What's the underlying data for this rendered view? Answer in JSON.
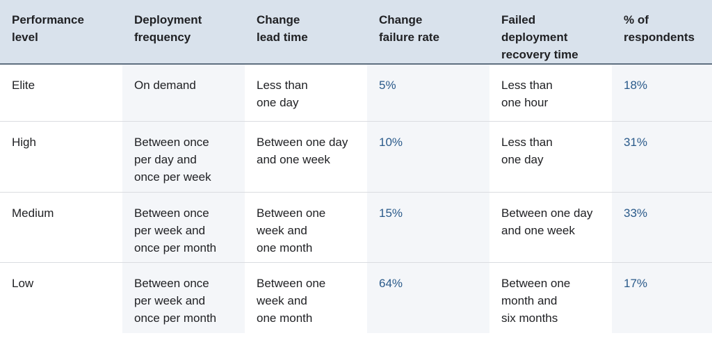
{
  "headers": [
    [
      "Performance",
      "level"
    ],
    [
      "Deployment",
      "frequency"
    ],
    [
      "Change",
      "lead time"
    ],
    [
      "Change",
      "failure rate"
    ],
    [
      "Failed",
      "deployment",
      "recovery time"
    ],
    [
      "% of",
      "respondents"
    ]
  ],
  "rows": [
    {
      "level": [
        "Elite"
      ],
      "deployment_frequency": [
        "On demand"
      ],
      "lead_time": [
        "Less than",
        "one day"
      ],
      "failure_rate": [
        "5%"
      ],
      "recovery_time": [
        "Less than",
        "one hour"
      ],
      "respondents": [
        "18%"
      ]
    },
    {
      "level": [
        "High"
      ],
      "deployment_frequency": [
        "Between once",
        "per day and",
        "once per week"
      ],
      "lead_time": [
        "Between one day",
        "and one week"
      ],
      "failure_rate": [
        "10%"
      ],
      "recovery_time": [
        "Less than",
        "one day"
      ],
      "respondents": [
        "31%"
      ]
    },
    {
      "level": [
        "Medium"
      ],
      "deployment_frequency": [
        "Between once",
        "per week and",
        "once per month"
      ],
      "lead_time": [
        "Between one",
        "week and",
        "one month"
      ],
      "failure_rate": [
        "15%"
      ],
      "recovery_time": [
        "Between one day",
        "and one week"
      ],
      "respondents": [
        "33%"
      ]
    },
    {
      "level": [
        "Low"
      ],
      "deployment_frequency": [
        "Between once",
        "per week and",
        "once per month"
      ],
      "lead_time": [
        "Between one",
        "week and",
        "one month"
      ],
      "failure_rate": [
        "64%"
      ],
      "recovery_time": [
        "Between one",
        "month and",
        "six months"
      ],
      "respondents": [
        "17%"
      ]
    }
  ],
  "colors": {
    "header_bg": "#d9e2ec",
    "header_rule": "#5f6f80",
    "alt_column_bg": "#f4f6f9",
    "accent_text": "#2a5a8a"
  }
}
